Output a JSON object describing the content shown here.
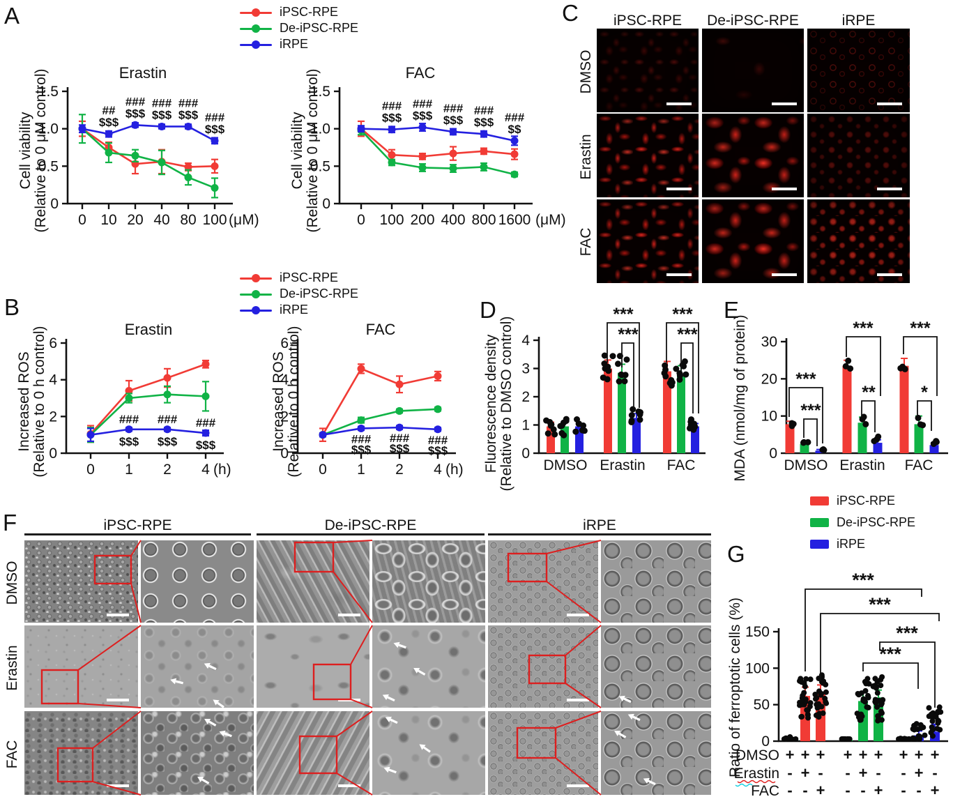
{
  "cell_lines": [
    {
      "name": "iPSC-RPE",
      "color": "#f13b35"
    },
    {
      "name": "De-iPSC-RPE",
      "color": "#10b346"
    },
    {
      "name": "iRPE",
      "color": "#2420e0"
    }
  ],
  "panelA": {
    "label": "A",
    "legend": [
      "iPSC-RPE",
      "De-iPSC-RPE",
      "iRPE"
    ],
    "charts": [
      {
        "title": "Erastin",
        "ylabel1": "Cell viability",
        "ylabel2": "(Relative to 0 μM control)",
        "ymax": 1.5,
        "yticks": [
          {
            "v": 1.5,
            "t": "1.5"
          },
          {
            "v": 1.0,
            "t": "1.0"
          },
          {
            "v": 0.5,
            "t": "0.5"
          },
          {
            "v": 0,
            "t": "0"
          }
        ],
        "xticks": [
          "0",
          "10",
          "20",
          "40",
          "80",
          "100"
        ],
        "xunit": "(μM)",
        "series": [
          {
            "name": "iPSC-RPE",
            "values": [
              1.0,
              0.75,
              0.53,
              0.56,
              0.49,
              0.5
            ],
            "err": [
              0.1,
              0.07,
              0.13,
              0.16,
              0.05,
              0.09
            ]
          },
          {
            "name": "De-iPSC-RPE",
            "values": [
              1.0,
              0.68,
              0.64,
              0.55,
              0.35,
              0.21
            ],
            "err": [
              0.19,
              0.13,
              0.08,
              0.16,
              0.1,
              0.13
            ]
          },
          {
            "name": "iRPE",
            "values": [
              1.0,
              0.93,
              1.05,
              1.03,
              1.03,
              0.84
            ],
            "err": [
              0.05,
              0.04,
              0.03,
              0.03,
              0.03,
              0.04
            ]
          }
        ],
        "annotations": [
          {
            "i": 1,
            "hash": "##",
            "dollar": "$$$"
          },
          {
            "i": 2,
            "hash": "###",
            "dollar": "$$$"
          },
          {
            "i": 3,
            "hash": "###",
            "dollar": "$$$"
          },
          {
            "i": 4,
            "hash": "###",
            "dollar": "$$$"
          },
          {
            "i": 5,
            "hash": "###",
            "dollar": "$$$"
          }
        ]
      },
      {
        "title": "FAC",
        "ylabel1": "Cell viability",
        "ylabel2": "(Relative to 0 μM control)",
        "ymax": 1.5,
        "yticks": [
          {
            "v": 1.5,
            "t": "1.5"
          },
          {
            "v": 1.0,
            "t": "1.0"
          },
          {
            "v": 0.5,
            "t": "0.5"
          },
          {
            "v": 0,
            "t": "0"
          }
        ],
        "xticks": [
          "0",
          "100",
          "200",
          "400",
          "800",
          "1600"
        ],
        "xunit": "(μM)",
        "series": [
          {
            "name": "iPSC-RPE",
            "values": [
              1.0,
              0.65,
              0.63,
              0.67,
              0.7,
              0.66
            ],
            "err": [
              0.1,
              0.07,
              0.04,
              0.09,
              0.04,
              0.07
            ]
          },
          {
            "name": "De-iPSC-RPE",
            "values": [
              0.98,
              0.55,
              0.48,
              0.47,
              0.49,
              0.39
            ],
            "err": [
              0.06,
              0.04,
              0.05,
              0.05,
              0.05,
              0.03
            ]
          },
          {
            "name": "iRPE",
            "values": [
              1.0,
              0.99,
              1.02,
              0.96,
              0.93,
              0.84
            ],
            "err": [
              0.04,
              0.04,
              0.05,
              0.04,
              0.04,
              0.06
            ]
          }
        ],
        "annotations": [
          {
            "i": 1,
            "hash": "###",
            "dollar": "$$$"
          },
          {
            "i": 2,
            "hash": "###",
            "dollar": "$$$"
          },
          {
            "i": 3,
            "hash": "###",
            "dollar": "$$$"
          },
          {
            "i": 4,
            "hash": "###",
            "dollar": "$$$"
          },
          {
            "i": 5,
            "hash": "###",
            "dollar": "$$"
          }
        ]
      }
    ]
  },
  "panelB": {
    "label": "B",
    "legend": [
      "iPSC-RPE",
      "De-iPSC-RPE",
      "iRPE"
    ],
    "charts": [
      {
        "title": "Erastin",
        "ylabel1": "Increased ROS",
        "ylabel2": "(Relative to 0 h control)",
        "ymax": 6,
        "yticks": [
          {
            "v": 6,
            "t": "6"
          },
          {
            "v": 4,
            "t": "4"
          },
          {
            "v": 2,
            "t": "2"
          },
          {
            "v": 0,
            "t": "0"
          }
        ],
        "xticks": [
          "0",
          "1",
          "2",
          "4"
        ],
        "xunit": "(h)",
        "series": [
          {
            "name": "iPSC-RPE",
            "values": [
              1.05,
              3.4,
              4.1,
              4.85
            ],
            "err": [
              0.45,
              0.55,
              0.5,
              0.2
            ]
          },
          {
            "name": "De-iPSC-RPE",
            "values": [
              1.0,
              3.0,
              3.2,
              3.1
            ],
            "err": [
              0.4,
              0.25,
              0.45,
              0.8
            ]
          },
          {
            "name": "iRPE",
            "values": [
              1.0,
              1.3,
              1.3,
              1.1
            ],
            "err": [
              0.35,
              0.1,
              0.1,
              0.15
            ]
          }
        ],
        "annotations": [
          {
            "i": 1,
            "hash": "###",
            "dollar": "$$$"
          },
          {
            "i": 2,
            "hash": "###",
            "dollar": "$$$"
          },
          {
            "i": 3,
            "hash": "###",
            "dollar": "$$$"
          }
        ]
      },
      {
        "title": "FAC",
        "ylabel1": "Increased ROS",
        "ylabel2": "(Relative to 0 h control)",
        "ymax": 6,
        "yticks": [
          {
            "v": 6,
            "t": "6"
          },
          {
            "v": 4,
            "t": "4"
          },
          {
            "v": 2,
            "t": "2"
          },
          {
            "v": 0,
            "t": "0"
          }
        ],
        "xticks": [
          "0",
          "1",
          "2",
          "4"
        ],
        "xunit": "(h)",
        "series": [
          {
            "name": "iPSC-RPE",
            "values": [
              1.0,
              4.6,
              3.75,
              4.2
            ],
            "err": [
              0.35,
              0.25,
              0.45,
              0.25
            ]
          },
          {
            "name": "De-iPSC-RPE",
            "values": [
              1.0,
              1.8,
              2.3,
              2.4
            ],
            "err": [
              0.1,
              0.15,
              0.1,
              0.1
            ]
          },
          {
            "name": "iRPE",
            "values": [
              1.0,
              1.35,
              1.4,
              1.3
            ],
            "err": [
              0.1,
              0.1,
              0.1,
              0.1
            ]
          }
        ],
        "annotations": [
          {
            "i": 1,
            "hash": "###",
            "dollar": "$$$"
          },
          {
            "i": 2,
            "hash": "###",
            "dollar": "$$$"
          },
          {
            "i": 3,
            "hash": "###",
            "dollar": "$$$"
          }
        ]
      }
    ]
  },
  "panelC": {
    "label": "C",
    "col_headers": [
      "iPSC-RPE",
      "De-iPSC-RPE",
      "iRPE"
    ],
    "row_labels": [
      "DMSO",
      "Erastin",
      "FAC"
    ]
  },
  "panelD": {
    "label": "D",
    "ylabel1": "Fluorescence density",
    "ylabel2": "(Relative to DMSO control)",
    "chart_data": {
      "type": "bar",
      "categories": [
        "DMSO",
        "Erastin",
        "FAC"
      ],
      "series": [
        {
          "name": "iPSC-RPE",
          "values": [
            0.95,
            3.0,
            2.9
          ],
          "err": [
            0.15,
            0.3,
            0.35
          ]
        },
        {
          "name": "De-iPSC-RPE",
          "values": [
            0.95,
            2.85,
            2.8
          ],
          "err": [
            0.15,
            0.3,
            0.3
          ]
        },
        {
          "name": "iRPE",
          "values": [
            0.95,
            1.25,
            0.95
          ],
          "err": [
            0.1,
            0.15,
            0.1
          ]
        }
      ],
      "yticks": [
        {
          "v": 0,
          "t": "0"
        },
        {
          "v": 1,
          "t": "1"
        },
        {
          "v": 2,
          "t": "2"
        },
        {
          "v": 3,
          "t": "3"
        },
        {
          "v": 4,
          "t": "4"
        }
      ],
      "ylim": [
        0,
        4
      ],
      "brackets": [
        {
          "group": "Erastin",
          "compare": [
            "iPSC-RPE",
            "iRPE"
          ],
          "label": "***"
        },
        {
          "group": "Erastin",
          "compare": [
            "De-iPSC-RPE",
            "iRPE"
          ],
          "label": "***"
        },
        {
          "group": "FAC",
          "compare": [
            "iPSC-RPE",
            "iRPE"
          ],
          "label": "***"
        },
        {
          "group": "FAC",
          "compare": [
            "De-iPSC-RPE",
            "iRPE"
          ],
          "label": "***"
        }
      ]
    }
  },
  "panelE": {
    "label": "E",
    "ylabel": "MDA (nmol/mg of protein)",
    "chart_data": {
      "type": "bar",
      "categories": [
        "DMSO",
        "Erastin",
        "FAC"
      ],
      "series": [
        {
          "name": "iPSC-RPE",
          "values": [
            7.8,
            23.5,
            23.5
          ],
          "err": [
            0.8,
            1.5,
            2.0
          ]
        },
        {
          "name": "De-iPSC-RPE",
          "values": [
            2.5,
            8.2,
            7.8
          ],
          "err": [
            0.5,
            1.5,
            2.2
          ]
        },
        {
          "name": "iRPE",
          "values": [
            0.7,
            2.8,
            2.2
          ],
          "err": [
            0.3,
            0.8,
            0.6
          ]
        }
      ],
      "yticks": [
        {
          "v": 0,
          "t": "0"
        },
        {
          "v": 10,
          "t": "10"
        },
        {
          "v": 20,
          "t": "20"
        },
        {
          "v": 30,
          "t": "30"
        }
      ],
      "ylim": [
        0,
        30
      ],
      "brackets": [
        {
          "group": "DMSO",
          "compare": [
            "iPSC-RPE",
            "iRPE"
          ],
          "label": "***"
        },
        {
          "group": "DMSO",
          "compare": [
            "De-iPSC-RPE",
            "iRPE"
          ],
          "label": "***"
        },
        {
          "group": "Erastin",
          "compare": [
            "iPSC-RPE",
            "iRPE"
          ],
          "label": "***"
        },
        {
          "group": "Erastin",
          "compare": [
            "De-iPSC-RPE",
            "iRPE"
          ],
          "label": "**"
        },
        {
          "group": "FAC",
          "compare": [
            "iPSC-RPE",
            "iRPE"
          ],
          "label": "***"
        },
        {
          "group": "FAC",
          "compare": [
            "De-iPSC-RPE",
            "iRPE"
          ],
          "label": "*"
        }
      ]
    }
  },
  "panelF": {
    "label": "F",
    "col_headers": [
      "iPSC-RPE",
      "De-iPSC-RPE",
      "iRPE"
    ],
    "row_labels": [
      "DMSO",
      "Erastin",
      "FAC"
    ]
  },
  "panelG": {
    "label": "G",
    "legend": [
      "iPSC-RPE",
      "De-iPSC-RPE",
      "iRPE"
    ],
    "ylabel": "Ratio of ferroptotic cells (%)",
    "chart_data": {
      "type": "bar",
      "conditions": [
        "DMSO",
        "Erastin",
        "FAC"
      ],
      "series": [
        {
          "name": "iPSC-RPE",
          "values": [
            2,
            62,
            65
          ],
          "err": [
            2,
            12,
            12
          ]
        },
        {
          "name": "De-iPSC-RPE",
          "values": [
            1.5,
            55,
            60
          ],
          "err": [
            1.5,
            12,
            10
          ]
        },
        {
          "name": "iRPE",
          "values": [
            2,
            8,
            13
          ],
          "err": [
            2,
            6,
            10
          ]
        }
      ],
      "yticks": [
        {
          "v": 0,
          "t": "0"
        },
        {
          "v": 50,
          "t": "50"
        },
        {
          "v": 100,
          "t": "100"
        },
        {
          "v": 150,
          "t": "150"
        }
      ],
      "ylim": [
        0,
        150
      ],
      "brackets": [
        {
          "compare": [
            "iPSC-RPE Erastin",
            "iRPE Erastin"
          ],
          "label": "***"
        },
        {
          "compare": [
            "iPSC-RPE FAC",
            "iRPE FAC"
          ],
          "label": "***"
        },
        {
          "compare": [
            "De-iPSC-RPE FAC",
            "iRPE FAC"
          ],
          "label": "***"
        },
        {
          "compare": [
            "De-iPSC-RPE Erastin",
            "iRPE Erastin"
          ],
          "label": "***"
        }
      ]
    },
    "matrix": {
      "row_labels": [
        "DMSO",
        "Erastin",
        "FAC"
      ],
      "rows": [
        [
          "+",
          "+",
          "+",
          "+",
          "+",
          "+",
          "+",
          "+",
          "+"
        ],
        [
          "-",
          "+",
          "-",
          "-",
          "+",
          "-",
          "-",
          "+",
          "-"
        ],
        [
          "-",
          "-",
          "+",
          "-",
          "-",
          "+",
          "-",
          "-",
          "+"
        ]
      ]
    }
  }
}
